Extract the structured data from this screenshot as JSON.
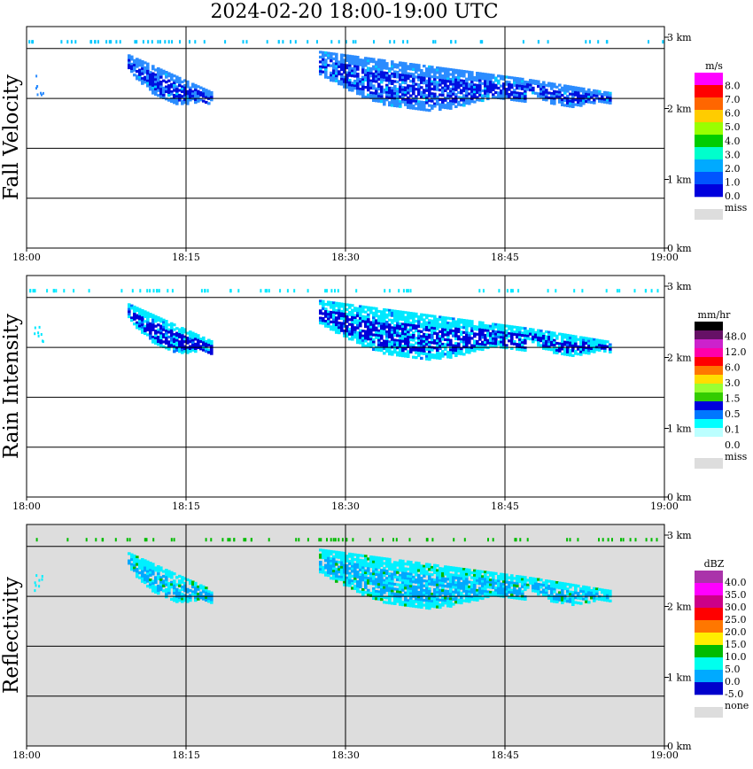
{
  "chart_data": [
    {
      "type": "heatmap",
      "title": "2024-02-20  18:00-19:00 UTC",
      "ylabel": "Fall Velocity",
      "x_ticks": [
        "18:00",
        "18:15",
        "18:30",
        "18:45",
        "19:00"
      ],
      "y_ticks": [
        "0 km",
        "1 km",
        "2 km",
        "3 km"
      ],
      "colorbar": {
        "unit": "m/s",
        "labels": [
          "8.0",
          "7.0",
          "6.0",
          "5.0",
          "4.0",
          "3.0",
          "2.0",
          "1.0",
          "0.0"
        ],
        "colors": [
          "#ff00ff",
          "#ff0000",
          "#ff6600",
          "#ffcc00",
          "#99ff00",
          "#00cc00",
          "#00ffcc",
          "#00aaff",
          "#0055ff",
          "#0000dd"
        ],
        "missing_label": "miss",
        "missing_color": "#dddddd"
      },
      "background": "#ffffff",
      "palette_light": "#2b8cff",
      "palette_dark": "#0010e0",
      "palette_accent": "#00c8ff"
    },
    {
      "type": "heatmap",
      "ylabel": "Rain Intensity",
      "x_ticks": [
        "18:00",
        "18:15",
        "18:30",
        "18:45",
        "19:00"
      ],
      "y_ticks": [
        "0 km",
        "1 km",
        "2 km",
        "3 km"
      ],
      "colorbar": {
        "unit": "mm/hr",
        "labels": [
          "48.0",
          "12.0",
          "6.0",
          "3.0",
          "1.5",
          "0.5",
          "0.1",
          "0.0"
        ],
        "colors": [
          "#000000",
          "#661166",
          "#cc22cc",
          "#ff00aa",
          "#ff0000",
          "#ff7700",
          "#ffdd00",
          "#99ff33",
          "#33cc00",
          "#0000dd",
          "#0077ff",
          "#00ffff",
          "#bbffff",
          "#ffffff"
        ],
        "missing_label": "miss",
        "missing_color": "#dddddd"
      },
      "background": "#ffffff",
      "palette_light": "#00e8ff",
      "palette_dark": "#0000d8",
      "palette_accent": "#0070ff"
    },
    {
      "type": "heatmap",
      "ylabel": "Reflectivity",
      "x_ticks": [
        "18:00",
        "18:15",
        "18:30",
        "18:45",
        "19:00"
      ],
      "y_ticks": [
        "0 km",
        "1 km",
        "2 km",
        "3 km"
      ],
      "colorbar": {
        "unit": "dBZ",
        "labels": [
          "40.0",
          "35.0",
          "30.0",
          "25.0",
          "20.0",
          "15.0",
          "10.0",
          "5.0",
          "0.0",
          "-5.0"
        ],
        "colors": [
          "#aa33aa",
          "#ff00ff",
          "#cc0088",
          "#ff0000",
          "#ff7700",
          "#ffee00",
          "#00bb00",
          "#00ffee",
          "#00aaff",
          "#0000cc"
        ],
        "missing_label": "none",
        "missing_color": "#dddddd"
      },
      "background": "#dddddd",
      "palette_light": "#00f0ff",
      "palette_dark": "#00a8ff",
      "palette_accent": "#00bb00"
    }
  ]
}
